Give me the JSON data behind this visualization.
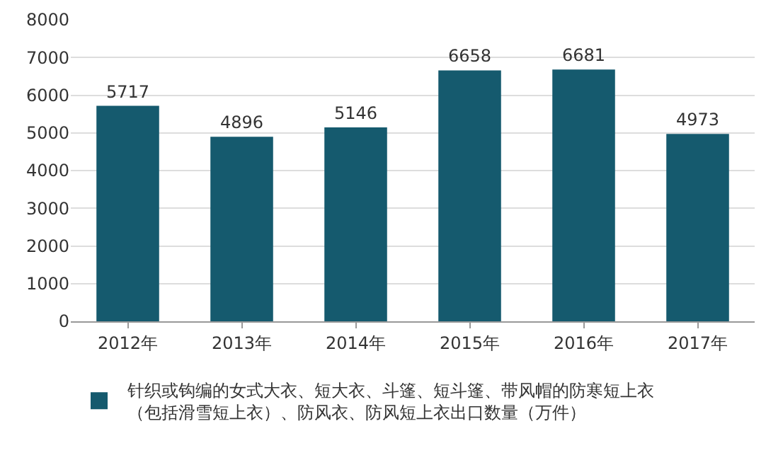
{
  "chart_data": {
    "type": "bar",
    "categories": [
      "2012年",
      "2013年",
      "2014年",
      "2015年",
      "2016年",
      "2017年"
    ],
    "series": [
      {
        "name": "针织或钩编的女式大衣、短大衣、斗篷、短斗篷、带风帽的防寒短上衣（包括滑雪短上衣）、防风衣、防风短上衣出口数量（万件）",
        "color": "#155a6e",
        "values": [
          5717,
          4896,
          5146,
          6658,
          6681,
          4973
        ]
      }
    ],
    "ylim": [
      0,
      8000
    ],
    "yticks": [
      0,
      1000,
      2000,
      3000,
      4000,
      5000,
      6000,
      7000,
      8000
    ],
    "grid": "y",
    "legend": "bottom",
    "data_labels": true
  }
}
